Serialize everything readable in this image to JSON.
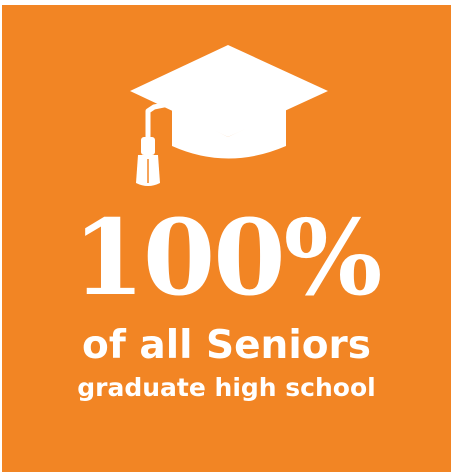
{
  "icon": "graduation-cap-icon",
  "colors": {
    "background": "#f28524",
    "foreground": "#ffffff"
  },
  "stat": {
    "value": "100%",
    "line1": "of all Seniors",
    "line2": "graduate high school"
  }
}
